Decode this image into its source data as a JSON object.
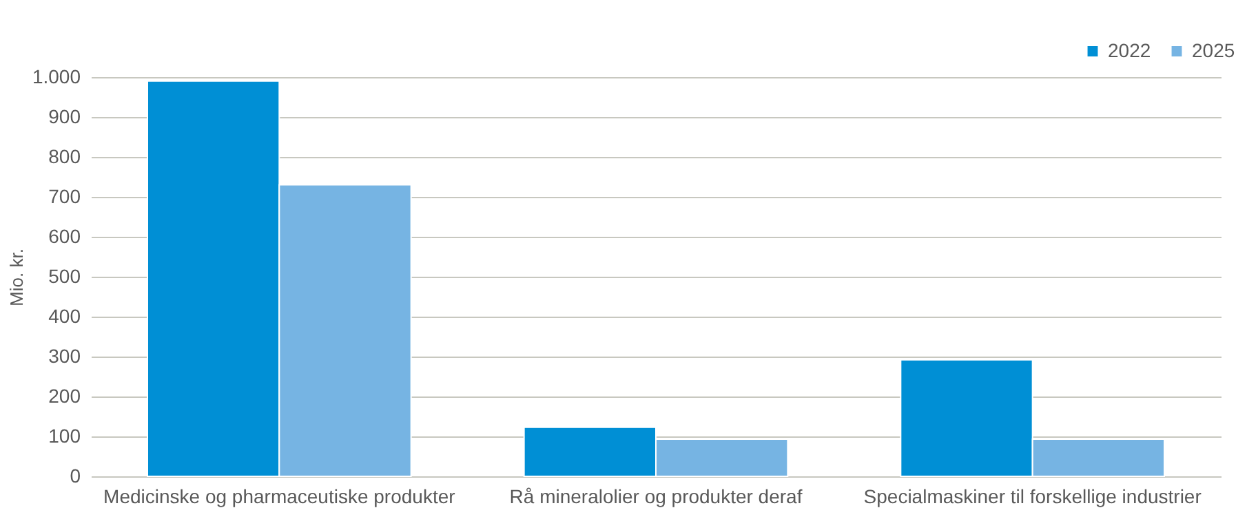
{
  "chart_data": {
    "type": "bar",
    "ylabel": "Mio. kr.",
    "categories": [
      "Medicinske og pharmaceutiske produkter",
      "Rå mineralolier og produkter deraf",
      "Specialmaskiner til forskellige industrier"
    ],
    "series": [
      {
        "name": "2022",
        "color": "#008fd5",
        "values": [
          990,
          123,
          292
        ]
      },
      {
        "name": "2025",
        "color": "#76b4e3",
        "values": [
          730,
          93,
          93
        ]
      }
    ],
    "ylim": [
      0,
      1000
    ],
    "yticks": [
      0,
      100,
      200,
      300,
      400,
      500,
      600,
      700,
      800,
      900,
      {
        "value": 1000,
        "label": "1.000"
      }
    ],
    "grid": "y",
    "legend": "top right"
  }
}
